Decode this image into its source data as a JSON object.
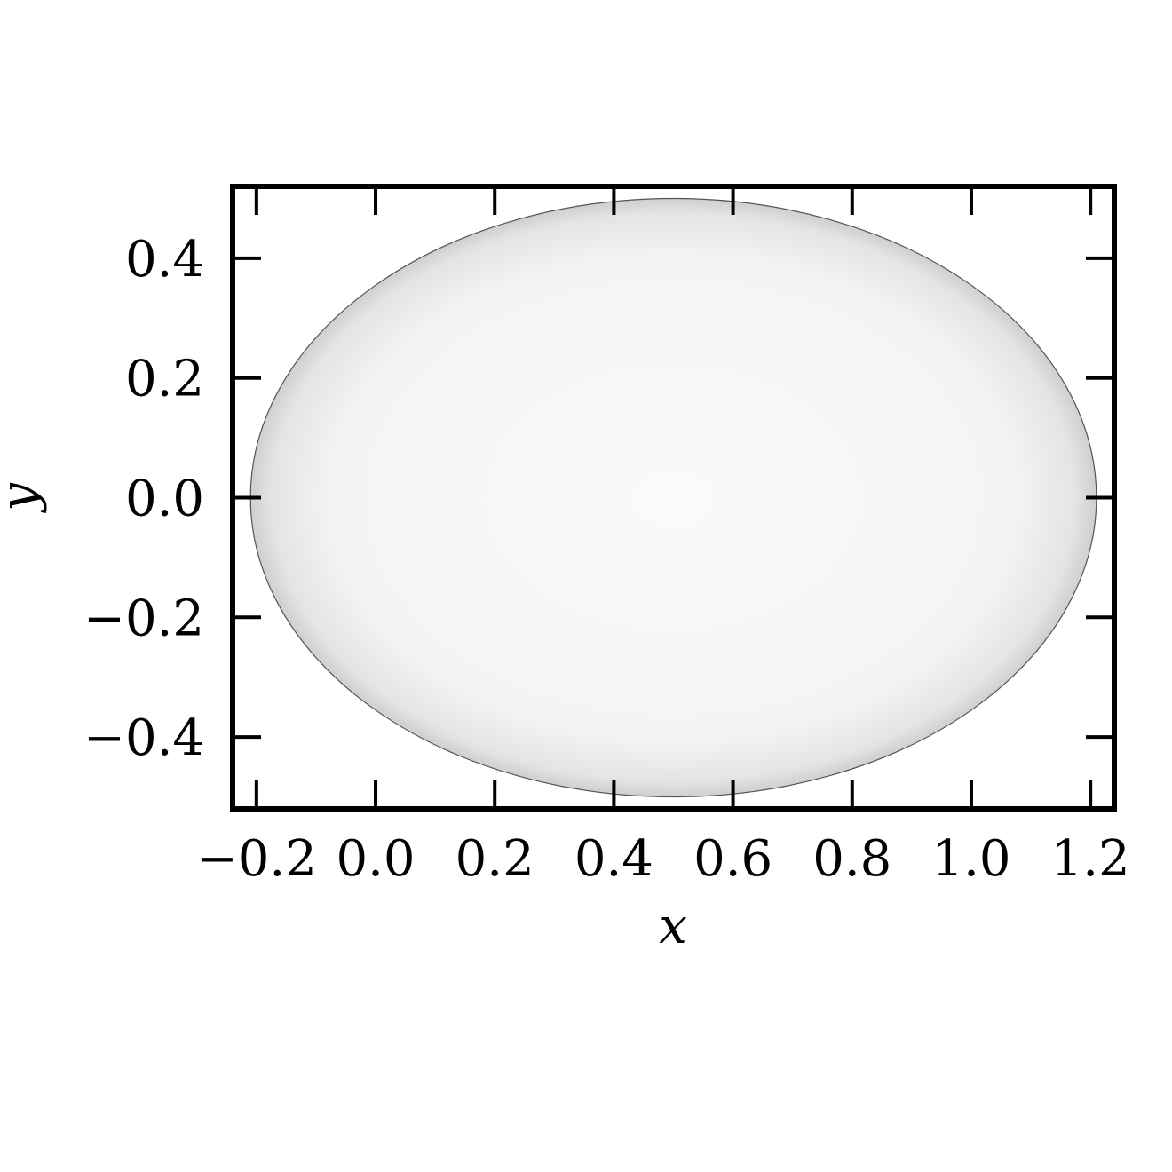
{
  "chart_data": {
    "type": "heatmap",
    "title": "",
    "xlabel": "x",
    "ylabel": "y",
    "xlim": [
      -0.24,
      1.24
    ],
    "ylim": [
      -0.52,
      0.52
    ],
    "x_ticks": [
      -0.2,
      0.0,
      0.2,
      0.4,
      0.6,
      0.8,
      1.0,
      1.2
    ],
    "x_tick_labels": [
      "−0.2",
      "0.0",
      "0.2",
      "0.4",
      "0.6",
      "0.8",
      "1.0",
      "1.2"
    ],
    "y_ticks": [
      0.4,
      0.2,
      0.0,
      -0.2,
      -0.4
    ],
    "y_tick_labels": [
      "0.4",
      "0.2",
      "0.0",
      "−0.2",
      "−0.4"
    ],
    "grid": false,
    "ellipse": {
      "center": [
        0.5,
        0.0
      ],
      "x_semi_axis": 0.71,
      "y_semi_axis": 0.5,
      "fill_color_center": "#fafafa",
      "fill_color_edge": "#d6d6d6",
      "edge_color": "#555555"
    },
    "colors": {
      "axes": "#000000",
      "background": "#ffffff"
    }
  }
}
